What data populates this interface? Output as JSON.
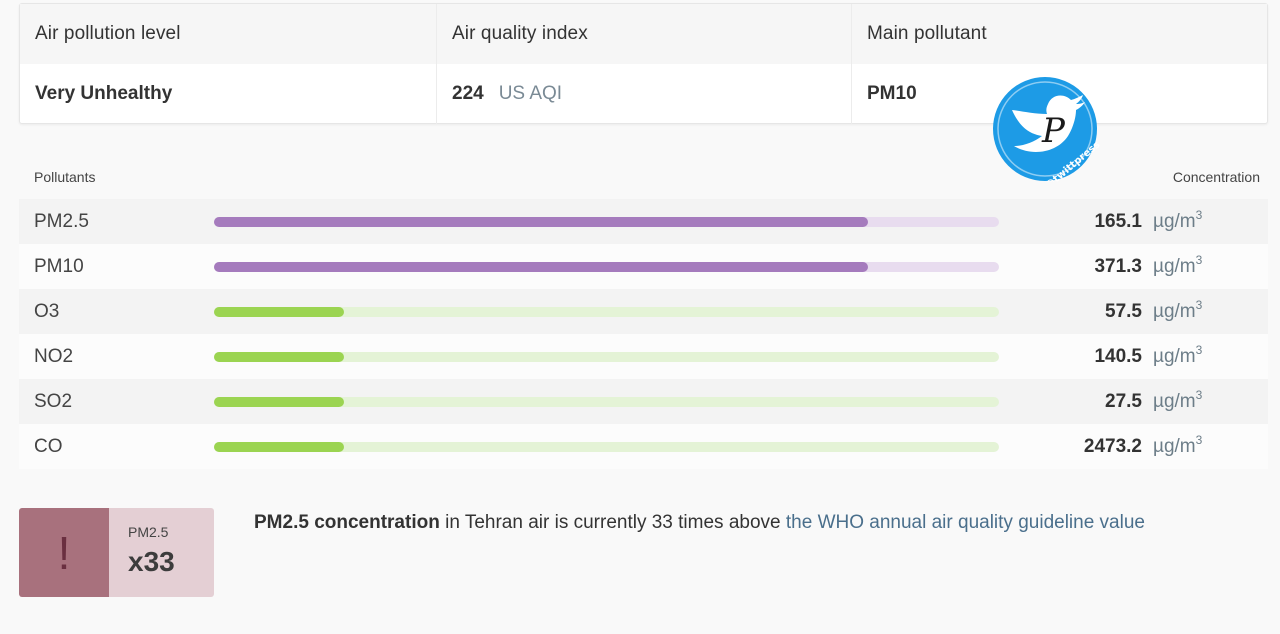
{
  "summary": {
    "headers": [
      "Air pollution level",
      "Air quality index",
      "Main pollutant"
    ],
    "level": "Very Unhealthy",
    "aqi_value": "224",
    "aqi_unit": "US AQI",
    "main_pollutant": "PM10"
  },
  "pollutants": {
    "label_left": "Pollutants",
    "label_right": "Concentration",
    "unit_base": "µg/m",
    "unit_sup": "3",
    "rows": [
      {
        "name": "PM2.5",
        "value": "165.1",
        "level": 0.833,
        "color": "#a57bbd",
        "track": "#e8dcef"
      },
      {
        "name": "PM10",
        "value": "371.3",
        "level": 0.833,
        "color": "#a57bbd",
        "track": "#e8dcef"
      },
      {
        "name": "O3",
        "value": "57.5",
        "level": 0.166,
        "color": "#9bd451",
        "track": "#e4f3d6"
      },
      {
        "name": "NO2",
        "value": "140.5",
        "level": 0.166,
        "color": "#9bd451",
        "track": "#e4f3d6"
      },
      {
        "name": "SO2",
        "value": "27.5",
        "level": 0.166,
        "color": "#9bd451",
        "track": "#e4f3d6"
      },
      {
        "name": "CO",
        "value": "2473.2",
        "level": 0.166,
        "color": "#9bd451",
        "track": "#e4f3d6"
      }
    ]
  },
  "alert": {
    "icon": "exclamation-icon",
    "small": "PM2.5",
    "big": "x33",
    "msg_bold": "PM2.5 concentration",
    "msg_text": " in Tehran air is currently 33 times above ",
    "msg_link": "the WHO annual air quality guideline value"
  },
  "watermark": {
    "handle": "@twittpress",
    "letter": "P"
  }
}
